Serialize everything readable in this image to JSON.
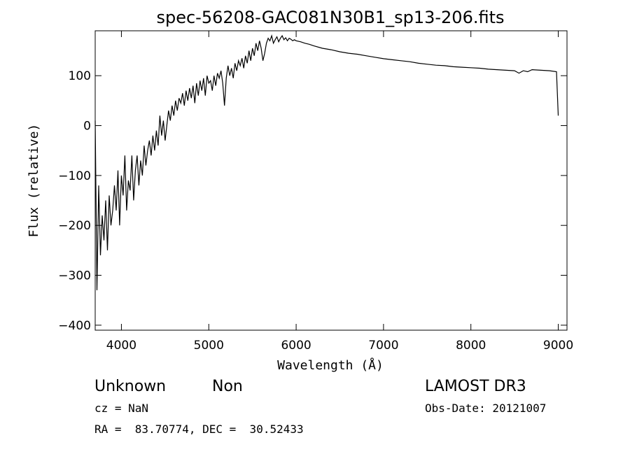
{
  "chart_data": {
    "type": "line",
    "title": "spec-56208-GAC081N30B1_sp13-206.fits",
    "xlabel": "Wavelength (Å)",
    "ylabel": "Flux (relative)",
    "xlim": [
      3700,
      9100
    ],
    "ylim": [
      -410,
      190
    ],
    "x_ticks": [
      4000,
      5000,
      6000,
      7000,
      8000,
      9000
    ],
    "y_ticks": [
      -400,
      -300,
      -200,
      -100,
      0,
      100
    ],
    "series": [
      {
        "x": [
          3700,
          3720,
          3740,
          3760,
          3780,
          3800,
          3820,
          3840,
          3860,
          3880,
          3900,
          3920,
          3940,
          3960,
          3980,
          4000,
          4020,
          4040,
          4060,
          4080,
          4100,
          4120,
          4140,
          4160,
          4180,
          4200,
          4220,
          4240,
          4260,
          4280,
          4300,
          4320,
          4340,
          4360,
          4380,
          4400,
          4420,
          4440,
          4460,
          4480,
          4500,
          4520,
          4540,
          4560,
          4580,
          4600,
          4620,
          4640,
          4660,
          4680,
          4700,
          4720,
          4740,
          4760,
          4780,
          4800,
          4820,
          4840,
          4860,
          4880,
          4900,
          4920,
          4940,
          4960,
          4980,
          5000,
          5020,
          5040,
          5060,
          5080,
          5100,
          5120,
          5140,
          5160,
          5180,
          5200,
          5220,
          5240,
          5260,
          5280,
          5300,
          5320,
          5340,
          5360,
          5380,
          5400,
          5420,
          5440,
          5460,
          5480,
          5500,
          5520,
          5540,
          5560,
          5580,
          5600,
          5620,
          5640,
          5660,
          5680,
          5700,
          5720,
          5740,
          5760,
          5780,
          5800,
          5820,
          5840,
          5860,
          5880,
          5900,
          5920,
          5940,
          5960,
          5980,
          6000,
          6050,
          6100,
          6150,
          6200,
          6300,
          6400,
          6500,
          6600,
          6700,
          6800,
          6900,
          7000,
          7100,
          7200,
          7300,
          7400,
          7500,
          7600,
          7700,
          7800,
          7900,
          8000,
          8100,
          8200,
          8300,
          8400,
          8500,
          8550,
          8600,
          8650,
          8700,
          8800,
          8900,
          8980,
          9000
        ],
        "values": [
          10,
          -330,
          -120,
          -260,
          -180,
          -230,
          -150,
          -250,
          -140,
          -200,
          -170,
          -120,
          -170,
          -90,
          -200,
          -100,
          -140,
          -60,
          -170,
          -110,
          -130,
          -60,
          -150,
          -90,
          -60,
          -120,
          -70,
          -100,
          -40,
          -80,
          -50,
          -30,
          -60,
          -20,
          -50,
          -10,
          -40,
          20,
          -20,
          10,
          -30,
          0,
          30,
          10,
          40,
          20,
          50,
          30,
          55,
          45,
          65,
          40,
          70,
          50,
          75,
          55,
          80,
          45,
          85,
          60,
          90,
          70,
          95,
          60,
          100,
          85,
          90,
          70,
          100,
          80,
          105,
          95,
          110,
          85,
          40,
          95,
          120,
          100,
          115,
          95,
          125,
          110,
          130,
          120,
          135,
          115,
          140,
          125,
          150,
          130,
          155,
          140,
          165,
          150,
          170,
          155,
          130,
          145,
          165,
          175,
          170,
          180,
          165,
          172,
          178,
          168,
          175,
          180,
          172,
          176,
          170,
          175,
          173,
          170,
          172,
          170,
          168,
          165,
          163,
          160,
          155,
          152,
          148,
          145,
          143,
          140,
          137,
          134,
          132,
          130,
          128,
          125,
          123,
          121,
          120,
          118,
          117,
          116,
          115,
          113,
          112,
          111,
          110,
          105,
          110,
          108,
          112,
          111,
          110,
          108,
          20
        ]
      }
    ]
  },
  "footer": {
    "object_class": "Unknown",
    "object_subclass": "Non",
    "survey": "LAMOST DR3",
    "cz": "cz = NaN",
    "obs_date": "Obs-Date: 20121007",
    "coords": "RA =  83.70774, DEC =  30.52433"
  }
}
